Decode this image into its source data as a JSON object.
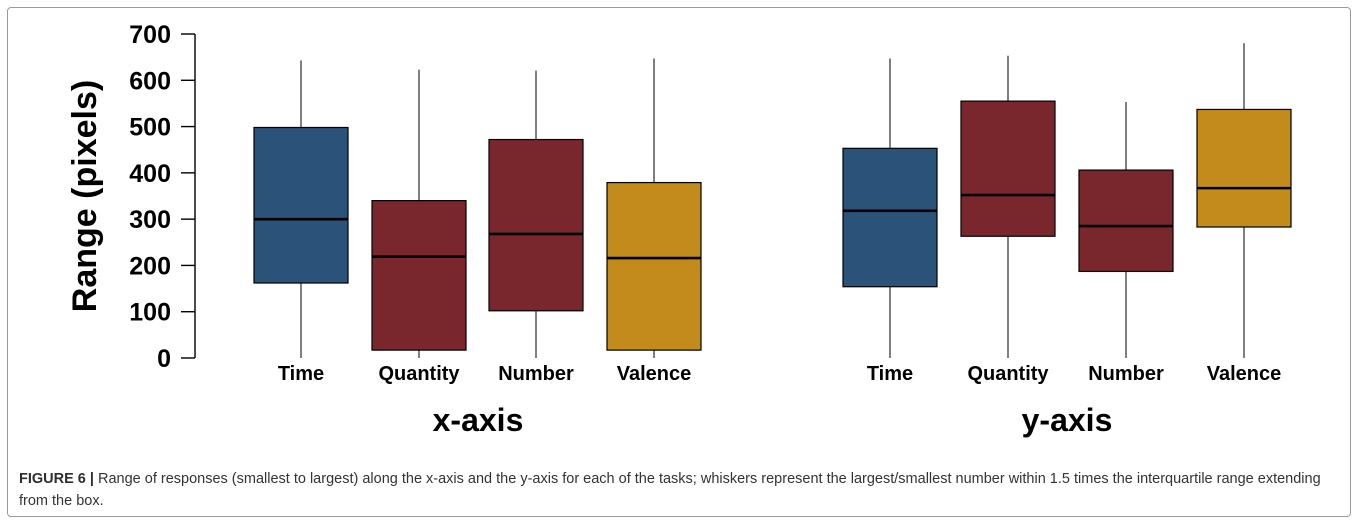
{
  "chart_data": [
    {
      "type": "box",
      "xlabel": "x-axis",
      "ylabel": "Range (pixels)",
      "ylim": [
        0,
        700
      ],
      "yticks": [
        "0",
        "100",
        "200",
        "300",
        "400",
        "500",
        "600",
        "700"
      ],
      "categories": [
        "Time",
        "Quantity",
        "Number",
        "Valence"
      ],
      "boxes": [
        {
          "name": "Time",
          "min": 0,
          "q1": 162,
          "median": 300,
          "q3": 498,
          "max": 643,
          "color": "#2b5278"
        },
        {
          "name": "Quantity",
          "min": 0,
          "q1": 17,
          "median": 219,
          "q3": 340,
          "max": 623,
          "color": "#79272d"
        },
        {
          "name": "Number",
          "min": 0,
          "q1": 102,
          "median": 268,
          "q3": 472,
          "max": 621,
          "color": "#79272d"
        },
        {
          "name": "Valence",
          "min": 0,
          "q1": 17,
          "median": 216,
          "q3": 379,
          "max": 647,
          "color": "#c38a1c"
        }
      ]
    },
    {
      "type": "box",
      "xlabel": "y-axis",
      "categories": [
        "Time",
        "Quantity",
        "Number",
        "Valence"
      ],
      "boxes": [
        {
          "name": "Time",
          "min": 0,
          "q1": 154,
          "median": 318,
          "q3": 453,
          "max": 647,
          "color": "#2b5278"
        },
        {
          "name": "Quantity",
          "min": 0,
          "q1": 263,
          "median": 352,
          "q3": 555,
          "max": 653,
          "color": "#79272d"
        },
        {
          "name": "Number",
          "min": 0,
          "q1": 187,
          "median": 285,
          "q3": 406,
          "max": 553,
          "color": "#79272d"
        },
        {
          "name": "Valence",
          "min": 0,
          "q1": 283,
          "median": 367,
          "q3": 537,
          "max": 680,
          "color": "#c38a1c"
        }
      ]
    }
  ],
  "caption": {
    "label": "FIGURE 6 |",
    "text": "Range of responses (smallest to largest) along the x-axis and the y-axis for each of the tasks; whiskers represent the largest/smallest number within 1.5 times the interquartile range extending from the box."
  }
}
